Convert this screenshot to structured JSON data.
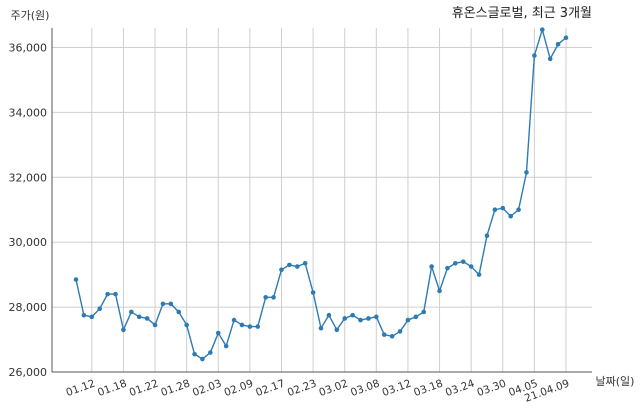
{
  "chart_data": {
    "type": "line",
    "title": "휴온스글로벌, 최근 3개월",
    "xlabel": "날짜(일)",
    "ylabel": "주가(원)",
    "ylim": [
      26000,
      36600
    ],
    "yticks": [
      26000,
      28000,
      30000,
      32000,
      34000,
      36000
    ],
    "ytick_labels": [
      "26,000",
      "28,000",
      "30,000",
      "32,000",
      "34,000",
      "36,000"
    ],
    "grid": true,
    "line_color": "#2e7bb4",
    "x_tick_labels": [
      "01.12",
      "01.18",
      "01.22",
      "01.28",
      "02.03",
      "02.09",
      "02.17",
      "02.23",
      "03.02",
      "03.08",
      "03.12",
      "03.18",
      "03.24",
      "03.30",
      "04.05",
      "21.04.09"
    ],
    "x_tick_indices": [
      2,
      6,
      10,
      14,
      18,
      22,
      26,
      30,
      34,
      38,
      42,
      46,
      50,
      54,
      58,
      62
    ],
    "series": [
      {
        "values": [
          28850,
          27750,
          27700,
          27950,
          28400,
          28400,
          27300,
          27850,
          27700,
          27650,
          27450,
          28100,
          28100,
          27850,
          27450,
          26550,
          26400,
          26600,
          27200,
          26800,
          27600,
          27450,
          27400,
          27400,
          28300,
          28300,
          29150,
          29300,
          29250,
          29350,
          28450,
          27350,
          27750,
          27300,
          27650,
          27750,
          27600,
          27650,
          27700,
          27150,
          27100,
          27250,
          27600,
          27700,
          27850,
          29250,
          28500,
          29200,
          29350,
          29400,
          29250,
          29000,
          30200,
          31000,
          31050,
          30800,
          31000,
          32150,
          35750,
          36550,
          35650,
          36100,
          36300
        ]
      }
    ]
  }
}
